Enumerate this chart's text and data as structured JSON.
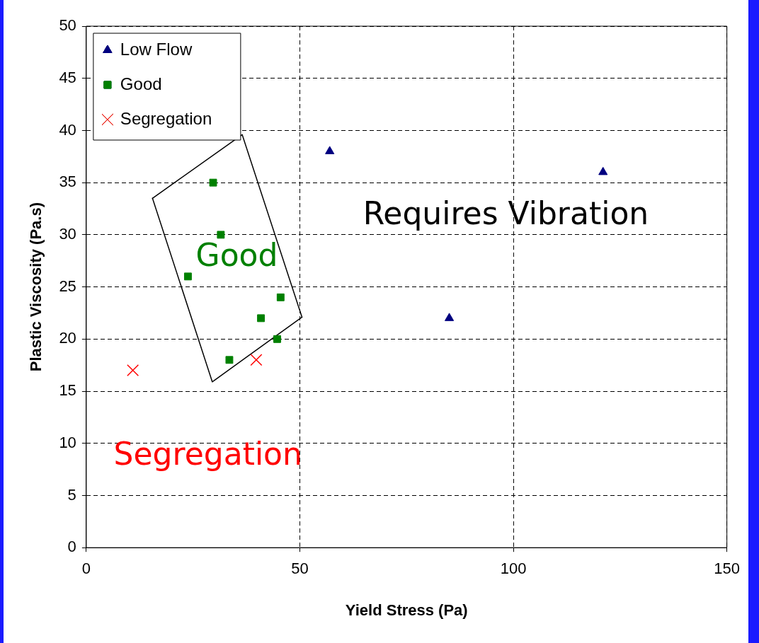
{
  "chart_data": {
    "type": "scatter",
    "xlabel": "Yield Stress (Pa)",
    "ylabel": "Plastic Viscosity (Pa.s)",
    "xlim": [
      0,
      150
    ],
    "xticks": [
      0,
      50,
      100,
      150
    ],
    "ylim": [
      0,
      50
    ],
    "yticks": [
      0,
      5,
      10,
      15,
      20,
      25,
      30,
      35,
      40,
      45,
      50
    ],
    "grid": true,
    "legend": "top left",
    "series": [
      {
        "name": "Low Flow",
        "color": "#000080",
        "marker": "triangle",
        "x": [
          57,
          85,
          121
        ],
        "values": [
          38,
          22,
          36
        ]
      },
      {
        "name": "Good",
        "color": "#008000",
        "marker": "square",
        "x": [
          29.7,
          31.5,
          23.8,
          40.9,
          45.5,
          44.7,
          33.5
        ],
        "values": [
          35,
          30,
          26,
          22,
          24,
          20,
          18
        ]
      },
      {
        "name": "Segregation",
        "color": "#ff0000",
        "marker": "cross",
        "x": [
          10.9,
          39.8
        ],
        "values": [
          17,
          18
        ]
      },
      {
        "type": "line",
        "color": "#000000",
        "marker": "none",
        "x": [
          15.5,
          36.5,
          50.5
        ],
        "values": [
          33.5,
          39.6,
          22.1
        ]
      },
      {
        "type": "line",
        "color": "#000000",
        "marker": "none",
        "x": [
          15.5,
          29.5,
          50.5
        ],
        "values": [
          33.5,
          15.9,
          22.1
        ]
      }
    ],
    "annotations": [
      "Requires Vibration",
      "Good",
      "Segregation"
    ]
  }
}
